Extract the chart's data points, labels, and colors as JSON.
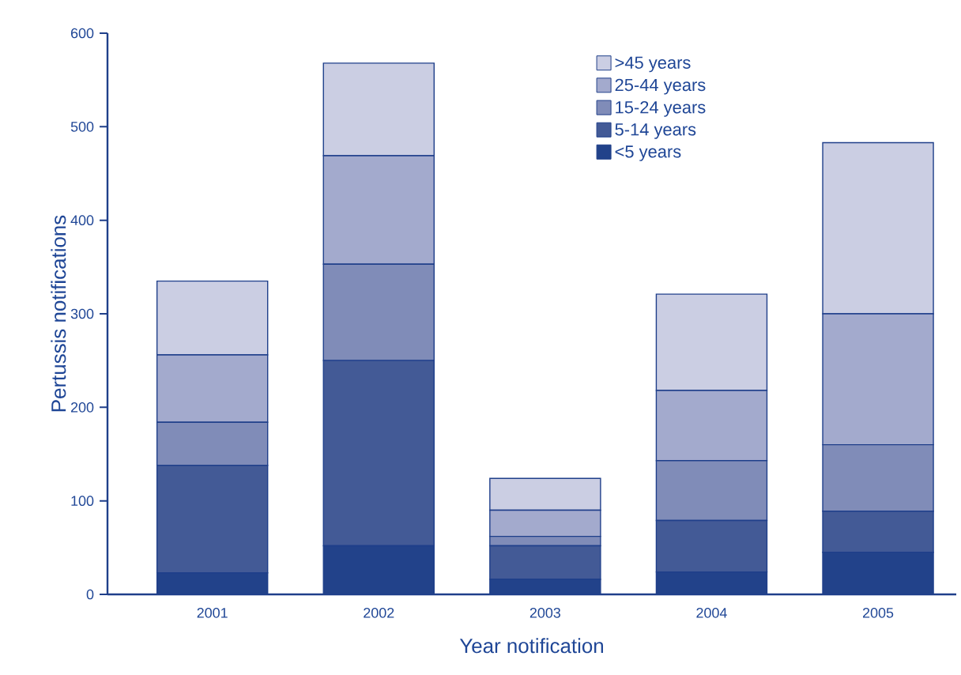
{
  "chart_data": {
    "type": "bar",
    "stacked": true,
    "xlabel": "Year notification",
    "ylabel": "Pertussis notifications",
    "categories": [
      "2001",
      "2002",
      "2003",
      "2004",
      "2005"
    ],
    "series": [
      {
        "name": "<5 years",
        "color": "#22428a",
        "values": [
          23,
          52,
          16,
          24,
          45
        ]
      },
      {
        "name": "5-14 years",
        "color": "#435a96",
        "values": [
          115,
          198,
          36,
          55,
          44
        ]
      },
      {
        "name": "15-24 years",
        "color": "#808cb8",
        "values": [
          46,
          103,
          10,
          64,
          71
        ]
      },
      {
        "name": "25-44 years",
        "color": "#a3aacd",
        "values": [
          72,
          116,
          28,
          75,
          140
        ]
      },
      {
        "name": ">45 years",
        "color": "#cbcee3",
        "values": [
          79,
          99,
          34,
          103,
          183
        ]
      }
    ],
    "ylim": [
      0,
      600
    ],
    "yticks": [
      0,
      100,
      200,
      300,
      400,
      500,
      600
    ],
    "legend": "top right"
  }
}
